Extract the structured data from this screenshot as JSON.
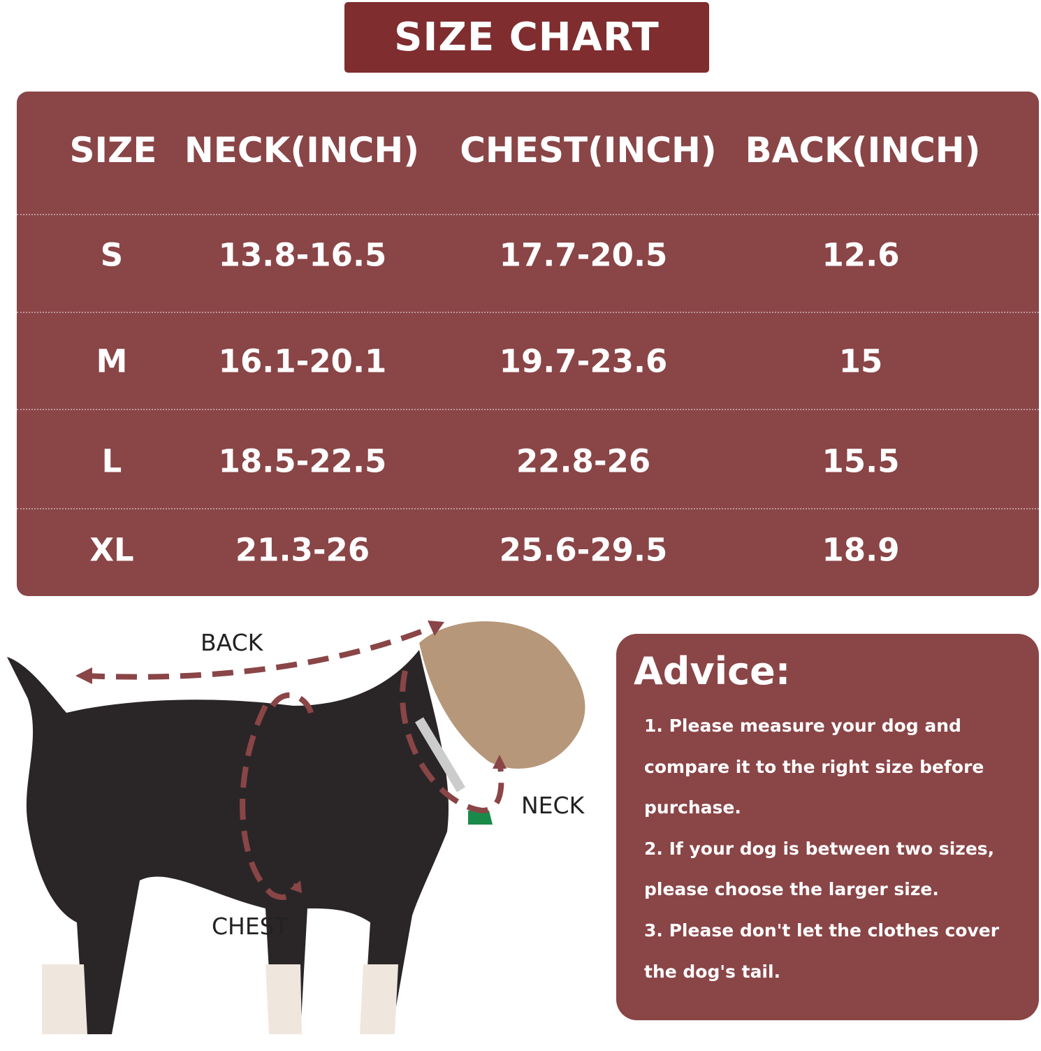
{
  "title": "SIZE CHART",
  "table": {
    "headers": [
      "SIZE",
      "NECK(INCH)",
      "CHEST(INCH)",
      "BACK(INCH)"
    ],
    "rows": [
      [
        "S",
        "13.8-16.5",
        "17.7-20.5",
        "12.6"
      ],
      [
        "M",
        "16.1-20.1",
        "19.7-23.6",
        "15"
      ],
      [
        "L",
        "18.5-22.5",
        "22.8-26",
        "15.5"
      ],
      [
        "XL",
        "21.3-26",
        "25.6-29.5",
        "18.9"
      ]
    ]
  },
  "diagram": {
    "labels": {
      "back": "BACK",
      "chest": "CHEST",
      "neck": "NECK"
    }
  },
  "advice": {
    "title": "Advice:",
    "items": [
      "1. Please measure your dog and compare it to the right size before purchase.",
      "2. If your dog is between two sizes, please choose the larger size.",
      "3. Please don't let the clothes cover the dog's tail."
    ]
  },
  "colors": {
    "brand": "#8a4547",
    "title_bg": "#7f2d2f"
  }
}
